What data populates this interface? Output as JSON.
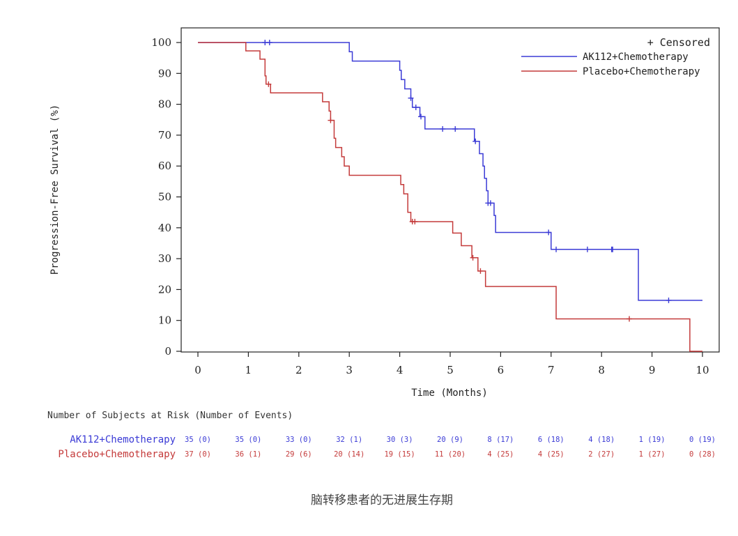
{
  "chart_data": {
    "type": "line",
    "subtype": "step",
    "caption": "脑转移患者的无进展生存期",
    "xlabel": "Time (Months)",
    "ylabel": "Progression-Free Survival (%)",
    "xlim": [
      0,
      10
    ],
    "ylim": [
      0,
      100
    ],
    "xticks": [
      "0",
      "1",
      "2",
      "3",
      "4",
      "5",
      "6",
      "7",
      "8",
      "9",
      "10"
    ],
    "yticks": [
      "0",
      "10",
      "20",
      "30",
      "40",
      "50",
      "60",
      "70",
      "80",
      "90",
      "100"
    ],
    "grid": false,
    "legend_position": "top-right",
    "censor_legend": "+ Censored",
    "series": [
      {
        "name": "AK112+Chemotherapy",
        "color": "#3b3bd6",
        "steps": [
          [
            0,
            100
          ],
          [
            3.0,
            97
          ],
          [
            3.06,
            94
          ],
          [
            4.0,
            91
          ],
          [
            4.03,
            88
          ],
          [
            4.1,
            85
          ],
          [
            4.22,
            82
          ],
          [
            4.25,
            79
          ],
          [
            4.4,
            76
          ],
          [
            4.5,
            72
          ],
          [
            5.48,
            68
          ],
          [
            5.58,
            64
          ],
          [
            5.65,
            60
          ],
          [
            5.68,
            56
          ],
          [
            5.72,
            52
          ],
          [
            5.75,
            48
          ],
          [
            5.87,
            44
          ],
          [
            5.9,
            38.5
          ],
          [
            7.0,
            33
          ],
          [
            8.73,
            16.5
          ],
          [
            10.0,
            16.5
          ]
        ],
        "censored": [
          [
            1.33,
            100
          ],
          [
            1.42,
            100
          ],
          [
            4.22,
            82
          ],
          [
            4.32,
            79
          ],
          [
            4.42,
            76
          ],
          [
            4.85,
            72
          ],
          [
            5.1,
            72
          ],
          [
            5.5,
            68
          ],
          [
            5.75,
            48
          ],
          [
            5.8,
            48
          ],
          [
            6.95,
            38.5
          ],
          [
            7.1,
            33
          ],
          [
            7.72,
            33
          ],
          [
            8.2,
            33
          ],
          [
            8.22,
            33
          ],
          [
            9.33,
            16.5
          ]
        ]
      },
      {
        "name": "Placebo+Chemotherapy",
        "color": "#c43a3a",
        "steps": [
          [
            0,
            100
          ],
          [
            0.95,
            97.3
          ],
          [
            1.23,
            94.6
          ],
          [
            1.33,
            89.2
          ],
          [
            1.35,
            86.5
          ],
          [
            1.44,
            83.7
          ],
          [
            2.47,
            80.8
          ],
          [
            2.6,
            77.8
          ],
          [
            2.63,
            74.8
          ],
          [
            2.7,
            69
          ],
          [
            2.73,
            66
          ],
          [
            2.85,
            63
          ],
          [
            2.9,
            60
          ],
          [
            3.0,
            57
          ],
          [
            4.02,
            54
          ],
          [
            4.08,
            51
          ],
          [
            4.16,
            45
          ],
          [
            4.22,
            42
          ],
          [
            5.05,
            38.3
          ],
          [
            5.22,
            34.2
          ],
          [
            5.43,
            30.3
          ],
          [
            5.55,
            26
          ],
          [
            5.7,
            21
          ],
          [
            7.1,
            10.5
          ],
          [
            9.75,
            0
          ],
          [
            10.0,
            0
          ]
        ],
        "censored": [
          [
            1.4,
            86.5
          ],
          [
            2.63,
            74.8
          ],
          [
            4.25,
            42
          ],
          [
            4.3,
            42
          ],
          [
            5.45,
            30.3
          ],
          [
            5.6,
            26
          ],
          [
            8.55,
            10.5
          ]
        ]
      }
    ]
  },
  "risk_table": {
    "title": "Number of Subjects at Risk (Number of Events)",
    "rows": [
      {
        "label": "AK112+Chemotherapy",
        "color": "#3b3bd6",
        "cells": [
          "35 (0)",
          "35 (0)",
          "33 (0)",
          "32 (1)",
          "30 (3)",
          "20 (9)",
          "8 (17)",
          "6 (18)",
          "4 (18)",
          "1 (19)",
          "0 (19)"
        ]
      },
      {
        "label": "Placebo+Chemotherapy",
        "color": "#c43a3a",
        "cells": [
          "37 (0)",
          "36 (1)",
          "29 (6)",
          "20 (14)",
          "19 (15)",
          "11 (20)",
          "4 (25)",
          "4 (25)",
          "2 (27)",
          "1 (27)",
          "0 (28)"
        ]
      }
    ]
  }
}
